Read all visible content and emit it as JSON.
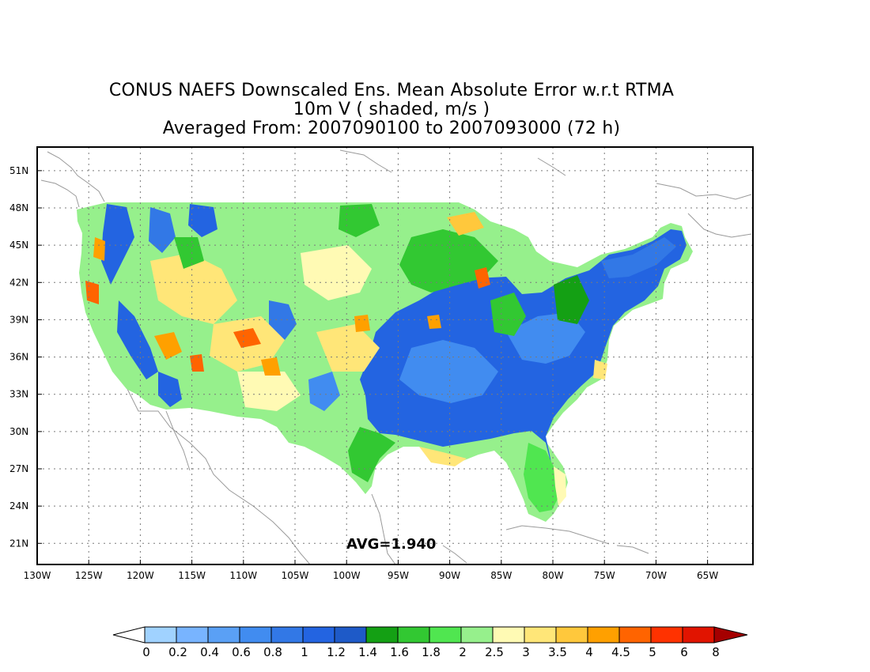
{
  "title": {
    "line1": "CONUS NAEFS Downscaled Ens. Mean Absolute Error w.r.t RTMA",
    "line2": "10m V ( shaded, m/s )",
    "line3": "Averaged From: 2007090100 to 2007093000 (72 h)"
  },
  "annotation": {
    "avg_label": "AVG=1.940"
  },
  "axes": {
    "lat_labels": [
      "51N",
      "48N",
      "45N",
      "42N",
      "39N",
      "36N",
      "33N",
      "30N",
      "27N",
      "24N",
      "21N"
    ],
    "lat_values": [
      51,
      48,
      45,
      42,
      39,
      36,
      33,
      30,
      27,
      24,
      21
    ],
    "lon_labels": [
      "130W",
      "125W",
      "120W",
      "115W",
      "110W",
      "105W",
      "100W",
      "95W",
      "90W",
      "85W",
      "80W",
      "75W",
      "70W",
      "65W"
    ],
    "lon_values": [
      -130,
      -125,
      -120,
      -115,
      -110,
      -105,
      -100,
      -95,
      -90,
      -85,
      -80,
      -75,
      -70,
      -65
    ],
    "lat_range": [
      19.3,
      52.9
    ],
    "lon_range": [
      -130,
      -60.6
    ],
    "grid": "dotted"
  },
  "colorbar": {
    "labels": [
      "0",
      "0.2",
      "0.4",
      "0.6",
      "0.8",
      "1",
      "1.2",
      "1.4",
      "1.6",
      "1.8",
      "2",
      "2.5",
      "3",
      "3.5",
      "4",
      "4.5",
      "5",
      "6",
      "8"
    ],
    "colors": [
      "#a0d2ff",
      "#78b4ff",
      "#5aa0f5",
      "#418cf0",
      "#3278e6",
      "#2364e1",
      "#1e5ac8",
      "#14a014",
      "#32c832",
      "#50e650",
      "#96f08c",
      "#fffab4",
      "#ffe678",
      "#ffc83c",
      "#ffa000",
      "#ff6400",
      "#ff3200",
      "#e11400",
      "#a50000"
    ],
    "under_color": "#ffffff",
    "over_color": "#a50000"
  },
  "regions": {
    "west_base_color": "#96f08c",
    "east_base_color": "#2364e1"
  }
}
